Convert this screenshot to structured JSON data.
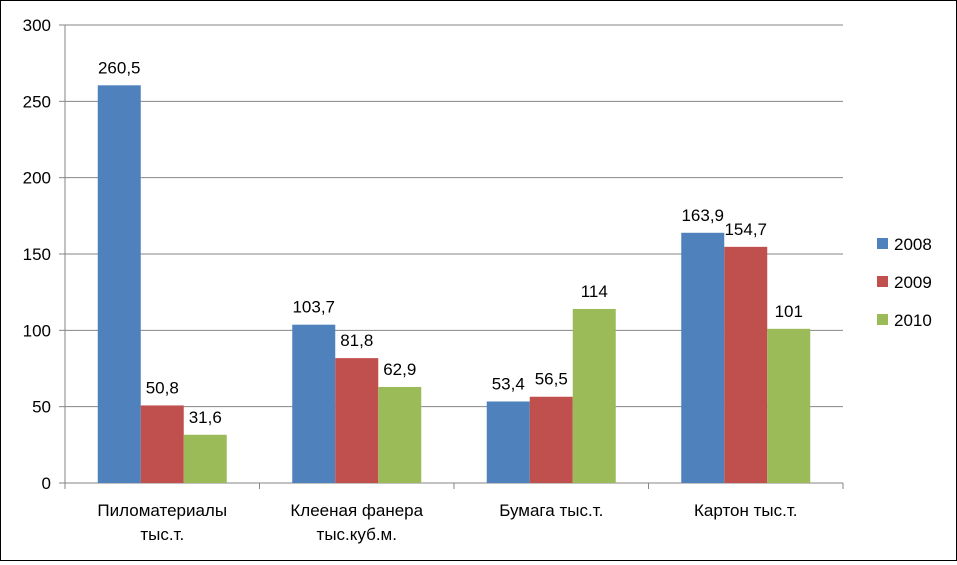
{
  "chart_data": {
    "type": "bar",
    "title": "",
    "xlabel": "",
    "ylabel": "",
    "ylim": [
      0,
      300
    ],
    "yticks": [
      0,
      50,
      100,
      150,
      200,
      250,
      300
    ],
    "grid": true,
    "legend_position": "right",
    "categories": [
      [
        "Пиломатериалы",
        "тыс.т."
      ],
      [
        "Клееная фанера",
        "тыс.куб.м."
      ],
      [
        "Бумага тыс.т."
      ],
      [
        "Картон тыс.т."
      ]
    ],
    "series": [
      {
        "name": "2008",
        "color": "#4F81BD",
        "values": [
          260.5,
          103.7,
          53.4,
          163.9
        ],
        "labels": [
          "260,5",
          "103,7",
          "53,4",
          "163,9"
        ]
      },
      {
        "name": "2009",
        "color": "#C0504D",
        "values": [
          50.8,
          81.8,
          56.5,
          154.7
        ],
        "labels": [
          "50,8",
          "81,8",
          "56,5",
          "154,7"
        ]
      },
      {
        "name": "2010",
        "color": "#9BBB59",
        "values": [
          31.6,
          62.9,
          114,
          101
        ],
        "labels": [
          "31,6",
          "62,9",
          "114",
          "101"
        ]
      }
    ]
  }
}
